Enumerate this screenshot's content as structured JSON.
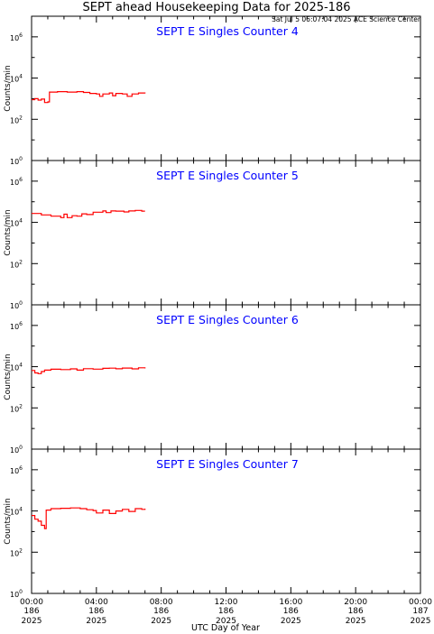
{
  "header": {
    "title": "SEPT ahead Housekeeping Data for 2025-186",
    "timestamp": "Sat Jul  5 06:07:04 2025 ACE Science Center"
  },
  "colors": {
    "data": "#ff0000",
    "panel_title": "#0000ff",
    "axes": "#000000"
  },
  "xaxis": {
    "label": "UTC Day of Year",
    "ticks": [
      {
        "time": "00:00",
        "doy": "186",
        "year": "2025",
        "hours": 0
      },
      {
        "time": "04:00",
        "doy": "186",
        "year": "2025",
        "hours": 4
      },
      {
        "time": "08:00",
        "doy": "186",
        "year": "2025",
        "hours": 8
      },
      {
        "time": "12:00",
        "doy": "186",
        "year": "2025",
        "hours": 12
      },
      {
        "time": "16:00",
        "doy": "186",
        "year": "2025",
        "hours": 16
      },
      {
        "time": "20:00",
        "doy": "186",
        "year": "2025",
        "hours": 20
      },
      {
        "time": "00:00",
        "doy": "187",
        "year": "2025",
        "hours": 24
      }
    ]
  },
  "yaxis": {
    "label": "Counts/min",
    "ticks": [
      {
        "base": "10",
        "exp": "0",
        "value": 1
      },
      {
        "base": "10",
        "exp": "2",
        "value": 100
      },
      {
        "base": "10",
        "exp": "4",
        "value": 10000
      },
      {
        "base": "10",
        "exp": "6",
        "value": 1000000
      }
    ]
  },
  "chart_data": [
    {
      "type": "line",
      "title": "SEPT E Singles Counter 4",
      "xlabel": "UTC Day of Year",
      "ylabel": "Counts/min",
      "yscale": "log",
      "ylim": [
        1,
        10000000
      ],
      "xlim": [
        0,
        24
      ],
      "x_units": "hours of DOY 186",
      "series": [
        {
          "points": [
            [
              0.0,
              900
            ],
            [
              0.2,
              1000
            ],
            [
              0.4,
              850
            ],
            [
              0.6,
              950
            ],
            [
              0.8,
              650
            ],
            [
              1.0,
              700
            ],
            [
              1.1,
              2100
            ],
            [
              1.6,
              2200
            ],
            [
              2.2,
              2100
            ],
            [
              2.8,
              2200
            ],
            [
              3.2,
              2000
            ],
            [
              3.6,
              1800
            ],
            [
              4.0,
              1700
            ],
            [
              4.2,
              1300
            ],
            [
              4.4,
              1700
            ],
            [
              4.8,
              1900
            ],
            [
              5.0,
              1400
            ],
            [
              5.2,
              1800
            ],
            [
              5.6,
              1700
            ],
            [
              5.9,
              1300
            ],
            [
              6.2,
              1700
            ],
            [
              6.6,
              1900
            ],
            [
              7.0,
              1800
            ]
          ]
        }
      ]
    },
    {
      "type": "line",
      "title": "SEPT E Singles Counter 5",
      "xlabel": "UTC Day of Year",
      "ylabel": "Counts/min",
      "yscale": "log",
      "ylim": [
        1,
        10000000
      ],
      "xlim": [
        0,
        24
      ],
      "x_units": "hours of DOY 186",
      "series": [
        {
          "points": [
            [
              0.0,
              27000
            ],
            [
              0.6,
              23000
            ],
            [
              1.2,
              20000
            ],
            [
              1.8,
              17000
            ],
            [
              2.0,
              25000
            ],
            [
              2.2,
              17000
            ],
            [
              2.5,
              21000
            ],
            [
              2.8,
              20000
            ],
            [
              3.1,
              26000
            ],
            [
              3.4,
              24000
            ],
            [
              3.8,
              31000
            ],
            [
              4.4,
              36000
            ],
            [
              4.6,
              30000
            ],
            [
              4.9,
              36000
            ],
            [
              5.2,
              35000
            ],
            [
              5.7,
              32000
            ],
            [
              6.0,
              36000
            ],
            [
              6.4,
              38000
            ],
            [
              6.8,
              35000
            ],
            [
              7.0,
              35000
            ]
          ]
        }
      ]
    },
    {
      "type": "line",
      "title": "SEPT E Singles Counter 6",
      "xlabel": "UTC Day of Year",
      "ylabel": "Counts/min",
      "yscale": "log",
      "ylim": [
        1,
        10000000
      ],
      "xlim": [
        0,
        24
      ],
      "x_units": "hours of DOY 186",
      "series": [
        {
          "points": [
            [
              0.0,
              6500
            ],
            [
              0.2,
              5000
            ],
            [
              0.4,
              4600
            ],
            [
              0.6,
              5800
            ],
            [
              0.8,
              6800
            ],
            [
              1.2,
              7500
            ],
            [
              1.8,
              7200
            ],
            [
              2.4,
              7800
            ],
            [
              2.8,
              6800
            ],
            [
              3.2,
              8000
            ],
            [
              3.8,
              7600
            ],
            [
              4.4,
              8300
            ],
            [
              4.8,
              8500
            ],
            [
              5.2,
              7900
            ],
            [
              5.6,
              8600
            ],
            [
              6.2,
              7800
            ],
            [
              6.6,
              8800
            ],
            [
              7.0,
              8200
            ]
          ]
        }
      ]
    },
    {
      "type": "line",
      "title": "SEPT E Singles Counter 7",
      "xlabel": "UTC Day of Year",
      "ylabel": "Counts/min",
      "yscale": "log",
      "ylim": [
        1,
        10000000
      ],
      "xlim": [
        0,
        24
      ],
      "x_units": "hours of DOY 186",
      "series": [
        {
          "points": [
            [
              0.0,
              6000
            ],
            [
              0.2,
              4000
            ],
            [
              0.4,
              3200
            ],
            [
              0.6,
              2000
            ],
            [
              0.8,
              1400
            ],
            [
              0.9,
              11000
            ],
            [
              1.2,
              13000
            ],
            [
              1.8,
              13500
            ],
            [
              2.4,
              14000
            ],
            [
              3.0,
              13000
            ],
            [
              3.4,
              11500
            ],
            [
              3.8,
              10500
            ],
            [
              4.0,
              8000
            ],
            [
              4.4,
              11000
            ],
            [
              4.8,
              7500
            ],
            [
              5.2,
              10000
            ],
            [
              5.6,
              12000
            ],
            [
              6.0,
              9500
            ],
            [
              6.4,
              13000
            ],
            [
              6.8,
              12000
            ],
            [
              7.0,
              13000
            ]
          ]
        }
      ]
    }
  ]
}
